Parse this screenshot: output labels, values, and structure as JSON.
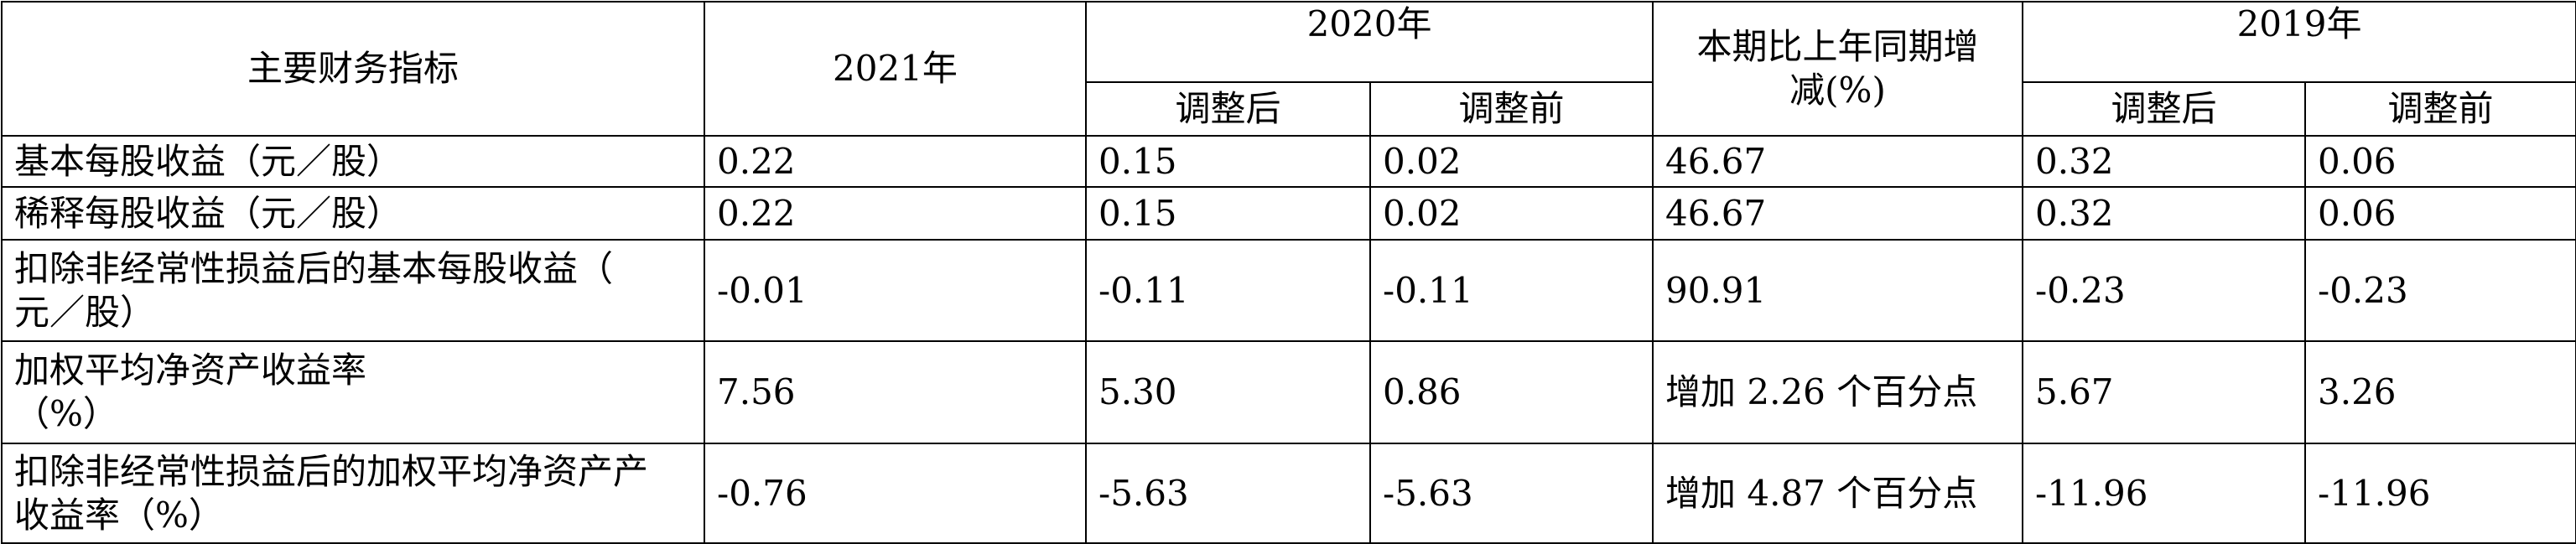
{
  "header": {
    "row1": [
      "主要财务指标",
      "2021年",
      "2020年",
      "本期比上年同期增\n减(%)",
      "2019年"
    ],
    "row2": [
      "调整后",
      "调整前",
      "调整后",
      "调整前"
    ]
  },
  "table": {
    "rows": [
      [
        "基本每股收益（元／股）",
        "0.22",
        "0.15",
        "0.02",
        "46.67",
        "0.32",
        "0.06"
      ],
      [
        "稀释每股收益（元／股）",
        "0.22",
        "0.15",
        "0.02",
        "46.67",
        "0.32",
        "0.06"
      ],
      [
        "扣除非经常性损益后的基本每股收益（\n元／股）",
        "-0.01",
        "-0.11",
        "-0.11",
        "90.91",
        "-0.23",
        "-0.23"
      ],
      [
        "加权平均净资产收益率\n（%）",
        "7.56",
        "5.30",
        "0.86",
        "增加 2.26 个百分点",
        "5.67",
        "3.26"
      ],
      [
        "扣除非经常性损益后的加权平均净资产产\n收益率（%）",
        "-0.76",
        "-5.63",
        "-5.63",
        "增加 4.87 个百分点",
        "-11.96",
        "-11.96"
      ]
    ]
  }
}
